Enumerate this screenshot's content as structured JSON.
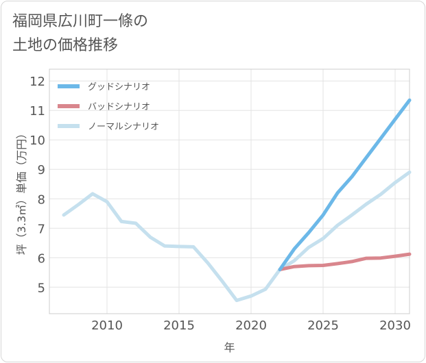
{
  "chart_data": {
    "type": "line",
    "title": "福岡県広川町一條の\n土地の価格推移",
    "xlabel": "年",
    "ylabel": "坪（3.3㎡）単価（万円）",
    "xlim": [
      2006,
      2031
    ],
    "ylim": [
      4.1,
      12.4
    ],
    "x_ticks": [
      2010,
      2015,
      2020,
      2025,
      2030
    ],
    "y_ticks": [
      5,
      6,
      7,
      8,
      9,
      10,
      11,
      12
    ],
    "grid": true,
    "legend_position": "top-left",
    "series": [
      {
        "name": "グッドシナリオ",
        "color": "#6cb8e8",
        "x": [
          2022,
          2023,
          2024,
          2025,
          2026,
          2027,
          2028,
          2029,
          2030,
          2031
        ],
        "y": [
          5.6,
          6.3,
          6.85,
          7.45,
          8.2,
          8.75,
          9.4,
          10.05,
          10.7,
          11.35
        ]
      },
      {
        "name": "バッドシナリオ",
        "color": "#d9868d",
        "x": [
          2022,
          2023,
          2024,
          2025,
          2026,
          2027,
          2028,
          2029,
          2030,
          2031
        ],
        "y": [
          5.6,
          5.7,
          5.73,
          5.74,
          5.8,
          5.87,
          5.98,
          5.99,
          6.05,
          6.12
        ]
      },
      {
        "name": "ノーマルシナリオ",
        "color": "#c5e0ee",
        "x": [
          2007,
          2008,
          2009,
          2010,
          2011,
          2012,
          2013,
          2014,
          2015,
          2016,
          2017,
          2018,
          2019,
          2020,
          2021,
          2022,
          2023,
          2024,
          2025,
          2026,
          2027,
          2028,
          2029,
          2030,
          2031
        ],
        "y": [
          7.45,
          7.8,
          8.17,
          7.9,
          7.23,
          7.17,
          6.7,
          6.4,
          6.38,
          6.37,
          5.82,
          5.2,
          4.55,
          4.7,
          4.93,
          5.6,
          5.9,
          6.35,
          6.65,
          7.1,
          7.45,
          7.82,
          8.15,
          8.55,
          8.9
        ]
      }
    ]
  }
}
